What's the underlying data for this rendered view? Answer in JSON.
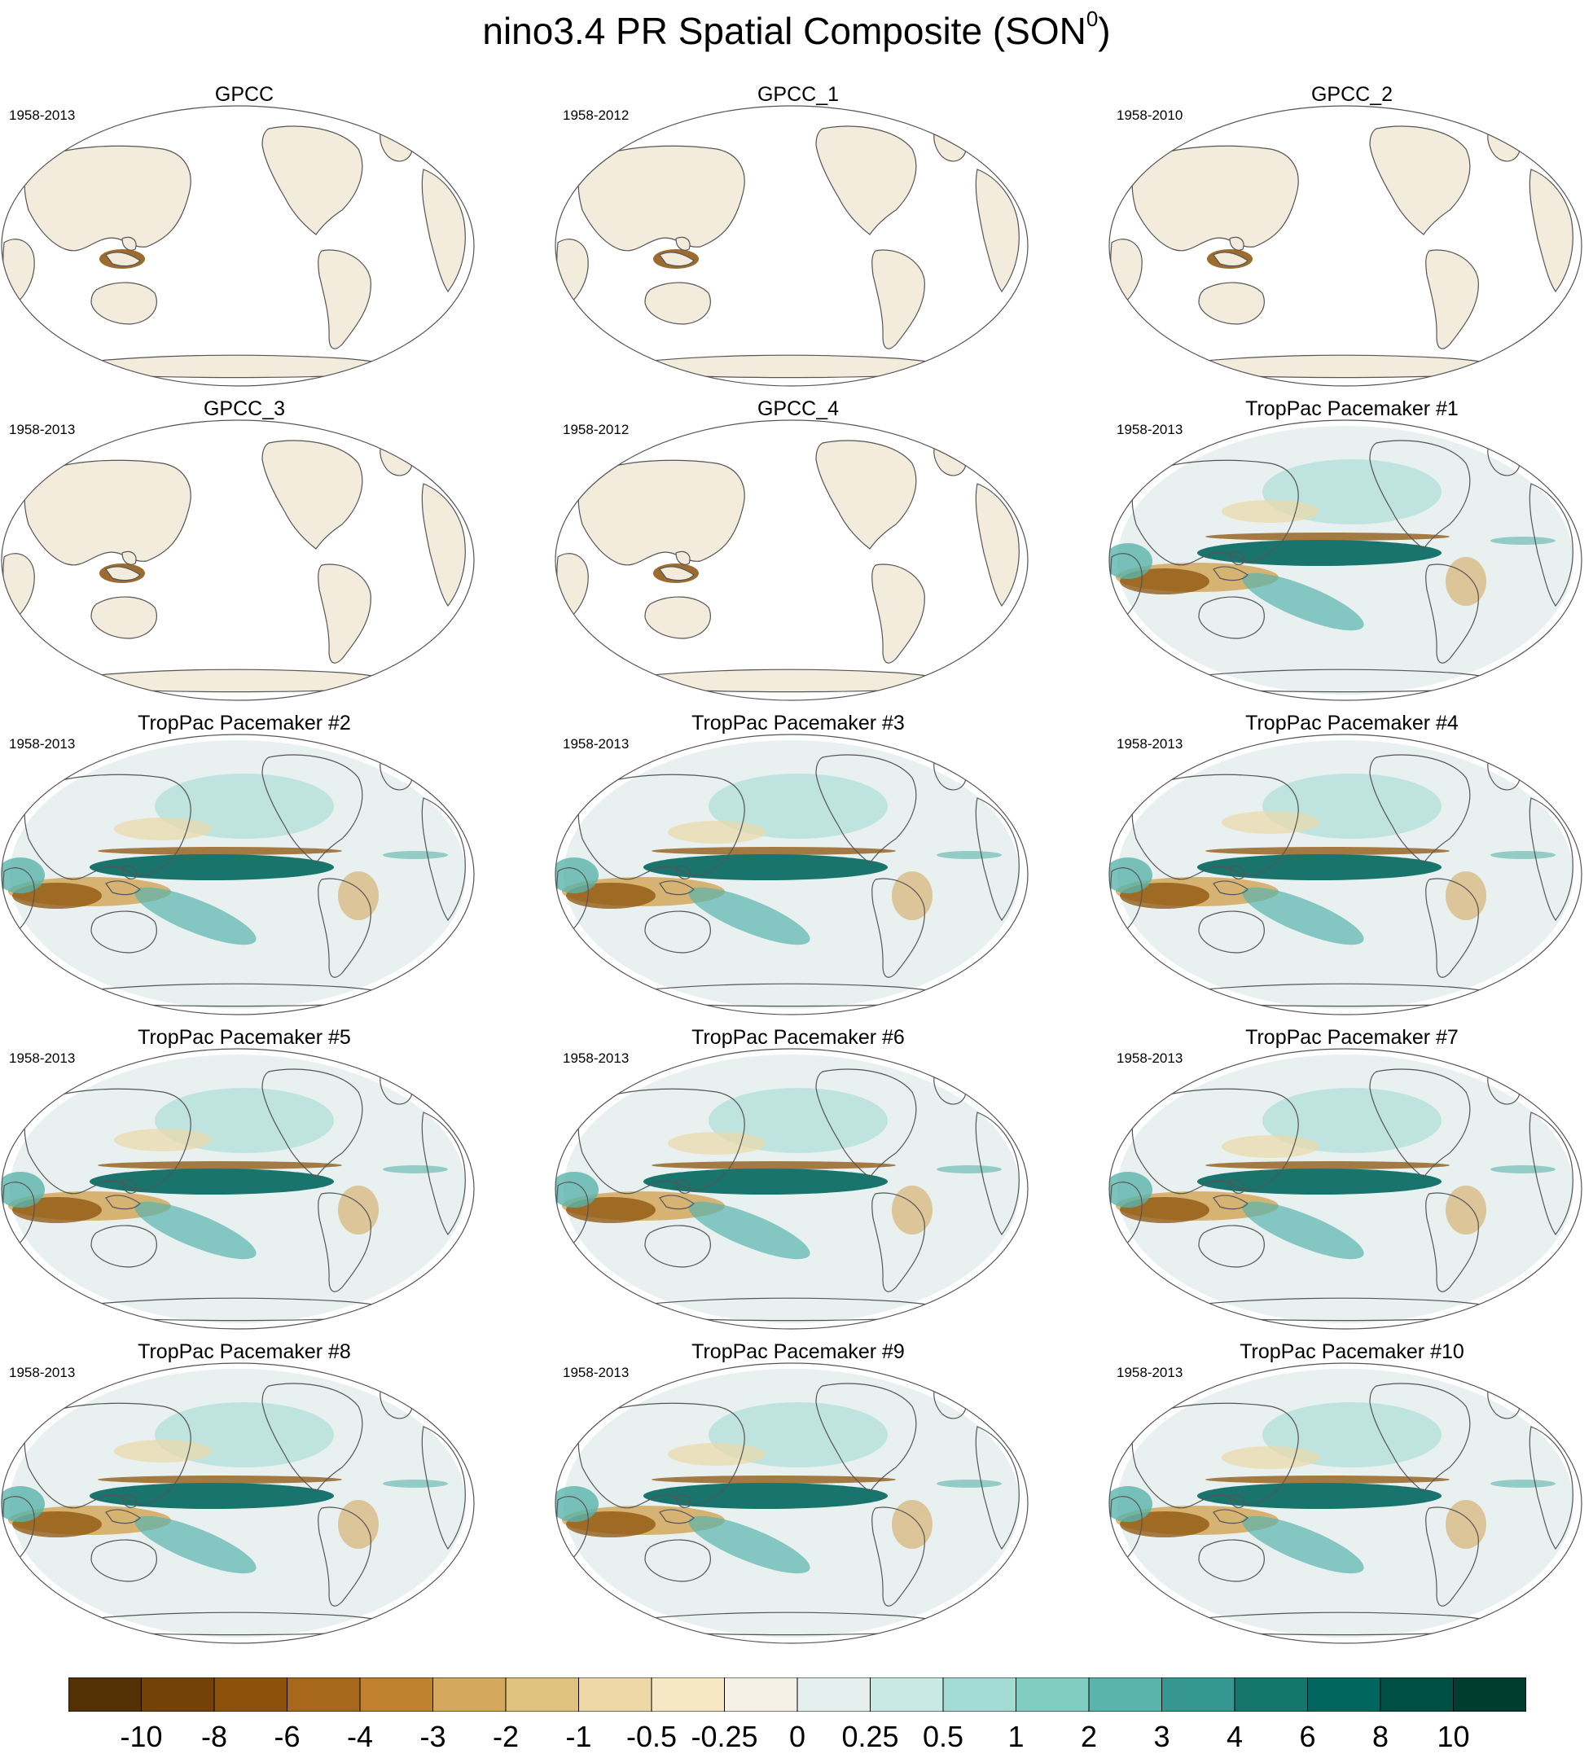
{
  "title": "nino3.4 PR Spatial Composite (SON",
  "title_superscript": "0",
  "title_close": ")",
  "panels": [
    {
      "title": "GPCC",
      "period": "1958-2013",
      "kind": "obs"
    },
    {
      "title": "GPCC_1",
      "period": "1958-2012",
      "kind": "obs"
    },
    {
      "title": "GPCC_2",
      "period": "1958-2010",
      "kind": "obs"
    },
    {
      "title": "GPCC_3",
      "period": "1958-2013",
      "kind": "obs"
    },
    {
      "title": "GPCC_4",
      "period": "1958-2012",
      "kind": "obs"
    },
    {
      "title": "TropPac Pacemaker #1",
      "period": "1958-2013",
      "kind": "model"
    },
    {
      "title": "TropPac Pacemaker #2",
      "period": "1958-2013",
      "kind": "model"
    },
    {
      "title": "TropPac Pacemaker #3",
      "period": "1958-2013",
      "kind": "model"
    },
    {
      "title": "TropPac Pacemaker #4",
      "period": "1958-2013",
      "kind": "model"
    },
    {
      "title": "TropPac Pacemaker #5",
      "period": "1958-2013",
      "kind": "model"
    },
    {
      "title": "TropPac Pacemaker #6",
      "period": "1958-2013",
      "kind": "model"
    },
    {
      "title": "TropPac Pacemaker #7",
      "period": "1958-2013",
      "kind": "model"
    },
    {
      "title": "TropPac Pacemaker #8",
      "period": "1958-2013",
      "kind": "model"
    },
    {
      "title": "TropPac Pacemaker #9",
      "period": "1958-2013",
      "kind": "model"
    },
    {
      "title": "TropPac Pacemaker #10",
      "period": "1958-2013",
      "kind": "model"
    }
  ],
  "colorbar": {
    "labels": [
      "-10",
      "-8",
      "-6",
      "-4",
      "-3",
      "-2",
      "-1",
      "-0.5",
      "-0.25",
      "0",
      "0.25",
      "0.5",
      "1",
      "2",
      "3",
      "4",
      "6",
      "8",
      "10"
    ],
    "colors": [
      "#543005",
      "#744208",
      "#8c510a",
      "#a8681b",
      "#bf812d",
      "#d4a85d",
      "#dfc27d",
      "#edd9a8",
      "#f6e8c3",
      "#f5f0e6",
      "#e5f0ee",
      "#c7eae5",
      "#a3dcd4",
      "#80cdc1",
      "#5ab4ac",
      "#35978f",
      "#15766e",
      "#01665e",
      "#004f45",
      "#003c30"
    ]
  }
}
